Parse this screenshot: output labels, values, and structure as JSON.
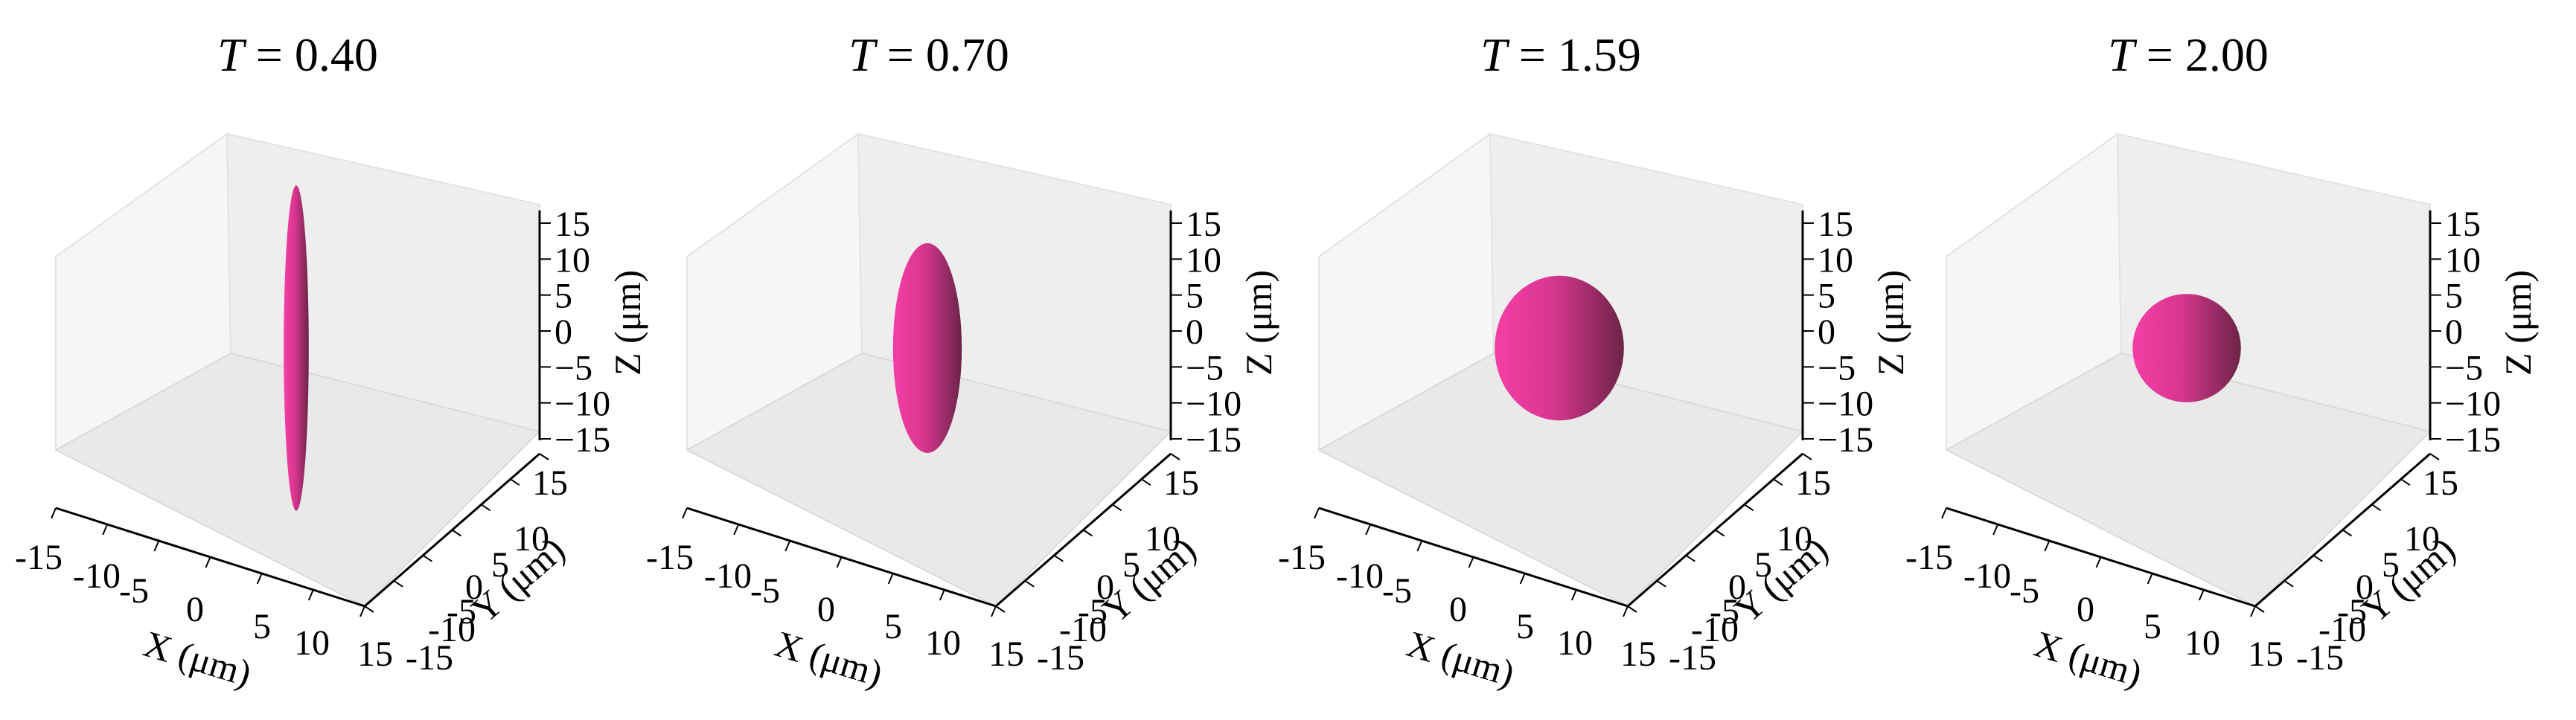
{
  "figure": {
    "accent_color": "#f53fa6",
    "shadow_color": "#6b2447",
    "pane_colors": [
      "#f4f4f4",
      "#ececec",
      "#e6e6e6"
    ]
  },
  "chart_data": [
    {
      "type": "scatter",
      "kind": "3d-ellipsoid",
      "title": "T = 0.40",
      "title_var": "T",
      "title_value": "= 0.40",
      "xlabel": "X (μm)",
      "ylabel": "Y (μm)",
      "zlabel": "Z (μm)",
      "xlim": [
        -15,
        15
      ],
      "ylim": [
        -15,
        15
      ],
      "zlim": [
        -15,
        15
      ],
      "xticks": [
        "-15",
        "-10",
        "-5",
        "0",
        "5",
        "10",
        "15"
      ],
      "yticks": [
        "-15",
        "-10",
        "-5",
        "0",
        "5",
        "10",
        "15"
      ],
      "zticks": [
        "15",
        "10",
        "5",
        "0",
        "−5",
        "−10",
        "−15"
      ],
      "zticks_values": [
        15,
        10,
        5,
        0,
        -5,
        -10,
        -15
      ],
      "ellipsoid": {
        "center": [
          0,
          0,
          0
        ],
        "semi_axis_xy": 1.2,
        "semi_axis_z": 13.5
      }
    },
    {
      "type": "scatter",
      "kind": "3d-ellipsoid",
      "title": "T = 0.70",
      "title_var": "T",
      "title_value": "= 0.70",
      "xlabel": "X (μm)",
      "ylabel": "Y (μm)",
      "zlabel": "Z (μm)",
      "xlim": [
        -15,
        15
      ],
      "ylim": [
        -15,
        15
      ],
      "zlim": [
        -15,
        15
      ],
      "xticks": [
        "-15",
        "-10",
        "-5",
        "0",
        "5",
        "10",
        "15"
      ],
      "yticks": [
        "-15",
        "-10",
        "-5",
        "0",
        "5",
        "10",
        "15"
      ],
      "zticks": [
        "15",
        "10",
        "5",
        "0",
        "−5",
        "−10",
        "−15"
      ],
      "zticks_values": [
        15,
        10,
        5,
        0,
        -5,
        -10,
        -15
      ],
      "ellipsoid": {
        "center": [
          0,
          0,
          0
        ],
        "semi_axis_xy": 3.3,
        "semi_axis_z": 8.7
      }
    },
    {
      "type": "scatter",
      "kind": "3d-ellipsoid",
      "title": "T = 1.59",
      "title_var": "T",
      "title_value": "= 1.59",
      "xlabel": "X (μm)",
      "ylabel": "Y (μm)",
      "zlabel": "Z (μm)",
      "xlim": [
        -15,
        15
      ],
      "ylim": [
        -15,
        15
      ],
      "zlim": [
        -15,
        15
      ],
      "xticks": [
        "-15",
        "-10",
        "-5",
        "0",
        "5",
        "10",
        "15"
      ],
      "yticks": [
        "-15",
        "-10",
        "-5",
        "0",
        "5",
        "10",
        "15"
      ],
      "zticks": [
        "15",
        "10",
        "5",
        "0",
        "−5",
        "−10",
        "−15"
      ],
      "zticks_values": [
        15,
        10,
        5,
        0,
        -5,
        -10,
        -15
      ],
      "ellipsoid": {
        "center": [
          0,
          0,
          0
        ],
        "semi_axis_xy": 6.2,
        "semi_axis_z": 6.0
      }
    },
    {
      "type": "scatter",
      "kind": "3d-ellipsoid",
      "title": "T = 2.00",
      "title_var": "T",
      "title_value": "= 2.00",
      "xlabel": "X (μm)",
      "ylabel": "Y (μm)",
      "zlabel": "Z (μm)",
      "xlim": [
        -15,
        15
      ],
      "ylim": [
        -15,
        15
      ],
      "zlim": [
        -15,
        15
      ],
      "xticks": [
        "-15",
        "-10",
        "-5",
        "0",
        "5",
        "10",
        "15"
      ],
      "yticks": [
        "-15",
        "-10",
        "-5",
        "0",
        "5",
        "10",
        "15"
      ],
      "zticks": [
        "15",
        "10",
        "5",
        "0",
        "−5",
        "−10",
        "−15"
      ],
      "zticks_values": [
        15,
        10,
        5,
        0,
        -5,
        -10,
        -15
      ],
      "ellipsoid": {
        "center": [
          0,
          0,
          0
        ],
        "semi_axis_xy": 5.2,
        "semi_axis_z": 4.5
      }
    }
  ]
}
